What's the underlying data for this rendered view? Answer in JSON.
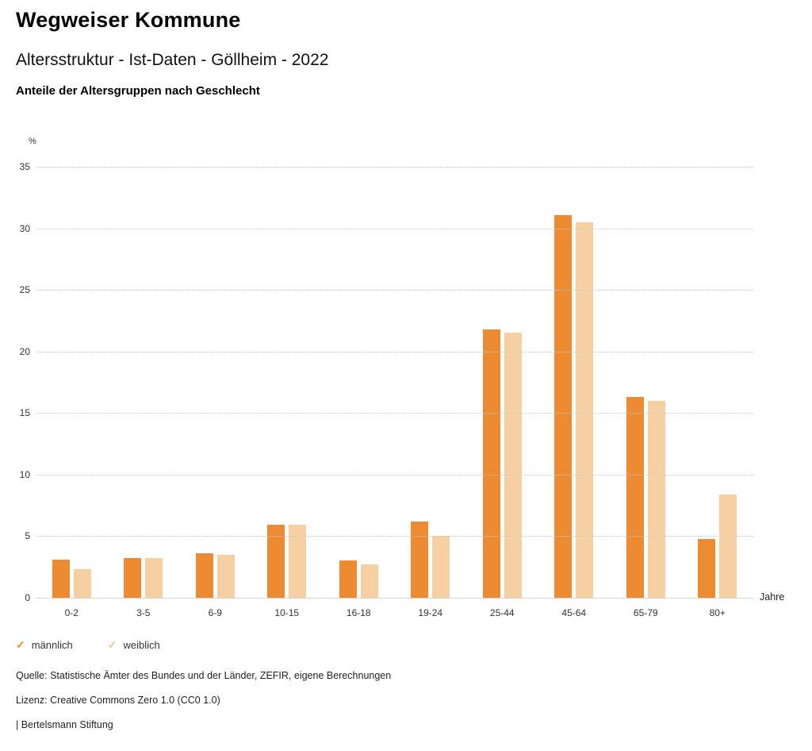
{
  "header": {
    "title": "Wegweiser Kommune",
    "subtitle": "Altersstruktur - Ist-Daten - Göllheim - 2022",
    "chart_heading": "Anteile der Altersgruppen nach Geschlecht"
  },
  "chart_data": {
    "type": "bar",
    "title": "Anteile der Altersgruppen nach Geschlecht",
    "categories": [
      "0-2",
      "3-5",
      "6-9",
      "10-15",
      "16-18",
      "19-24",
      "25-44",
      "45-64",
      "65-79",
      "80+"
    ],
    "series": [
      {
        "name": "männlich",
        "color": "#ED8B32",
        "values": [
          3.1,
          3.2,
          3.6,
          5.9,
          3.0,
          6.2,
          21.8,
          31.1,
          16.3,
          4.8
        ]
      },
      {
        "name": "weiblich",
        "color": "#F6D0A3",
        "values": [
          2.3,
          3.2,
          3.5,
          5.9,
          2.7,
          5.0,
          21.5,
          30.5,
          16.0,
          8.4
        ]
      }
    ],
    "ylabel": "%",
    "xlabel": "Jahre",
    "ylim": [
      0,
      35
    ],
    "ytick_step": 5,
    "yticks": [
      0,
      5,
      10,
      15,
      20,
      25,
      30,
      35
    ],
    "grid": "dotted-horizontal",
    "legend_position": "bottom-left"
  },
  "legend": {
    "check_glyph": "✓",
    "items": [
      {
        "label": "männlich",
        "color": "#ED8B32"
      },
      {
        "label": "weiblich",
        "color": "#F3C48D"
      }
    ]
  },
  "footer": {
    "source": "Quelle: Statistische Ämter des Bundes und der Länder, ZEFIR, eigene Berechnungen",
    "license": "Lizenz: Creative Commons Zero 1.0 (CC0 1.0)",
    "branding": "| Bertelsmann Stiftung"
  }
}
